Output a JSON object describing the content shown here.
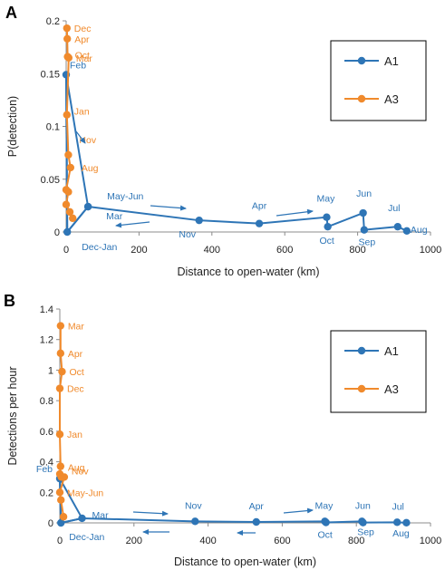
{
  "chart_data": [
    {
      "panel": "A",
      "type": "scatter",
      "xlabel": "Distance to open-water (km)",
      "ylabel": "P(detection)",
      "xlim": [
        0,
        1000
      ],
      "ylim": [
        0,
        0.2
      ],
      "xticks": [
        "0",
        "200",
        "400",
        "600",
        "800",
        "1000"
      ],
      "yticks": [
        "0",
        "0.05",
        "0.1",
        "0.15",
        "0.2"
      ],
      "grid": false,
      "legend": "top-right",
      "series": [
        {
          "name": "A1",
          "color": "#2e75b6",
          "points": [
            {
              "x": 0,
              "y": 0.149,
              "label": "Feb"
            },
            {
              "x": 3,
              "y": 0.0,
              "label": "Dec-Jan"
            },
            {
              "x": 60,
              "y": 0.024,
              "label": "May-Jun"
            },
            {
              "x": 60,
              "y": 0.024,
              "label": "Mar"
            },
            {
              "x": 365,
              "y": 0.011,
              "label": "Nov"
            },
            {
              "x": 530,
              "y": 0.008,
              "label": "Apr"
            },
            {
              "x": 715,
              "y": 0.014,
              "label": "May"
            },
            {
              "x": 718,
              "y": 0.005,
              "label": "Oct"
            },
            {
              "x": 815,
              "y": 0.018,
              "label": "Jun"
            },
            {
              "x": 818,
              "y": 0.002,
              "label": "Sep"
            },
            {
              "x": 910,
              "y": 0.005,
              "label": "Jul"
            },
            {
              "x": 935,
              "y": 0.001,
              "label": "Aug"
            }
          ]
        },
        {
          "name": "A3",
          "color": "#f08a2c",
          "points": [
            {
              "x": 2,
              "y": 0.193,
              "label": "Dec"
            },
            {
              "x": 3,
              "y": 0.183,
              "label": "Apr"
            },
            {
              "x": 4,
              "y": 0.166,
              "label": "Oct"
            },
            {
              "x": 7,
              "y": 0.165,
              "label": "Mar"
            },
            {
              "x": 2,
              "y": 0.111,
              "label": "Jan"
            },
            {
              "x": 6,
              "y": 0.073,
              "label": "Nov"
            },
            {
              "x": 12,
              "y": 0.061,
              "label": "Aug"
            },
            {
              "x": 0,
              "y": 0.04,
              "label": ""
            },
            {
              "x": 6,
              "y": 0.038,
              "label": ""
            },
            {
              "x": 0,
              "y": 0.026,
              "label": ""
            },
            {
              "x": 10,
              "y": 0.019,
              "label": ""
            },
            {
              "x": 18,
              "y": 0.013,
              "label": ""
            }
          ]
        }
      ],
      "annotations": [
        {
          "type": "arrow",
          "note": "down, near Feb-Nov"
        },
        {
          "type": "arrow",
          "note": "right, Mar to Nov"
        },
        {
          "type": "arrow",
          "note": "left, Nov to Mar"
        },
        {
          "type": "arrow",
          "note": "right, Apr to May"
        }
      ]
    },
    {
      "panel": "B",
      "type": "scatter",
      "xlabel": "Distance to open-water (km)",
      "ylabel": "Detections per hour",
      "xlim": [
        0,
        1000
      ],
      "ylim": [
        0,
        1.4
      ],
      "xticks": [
        "0",
        "200",
        "400",
        "600",
        "800",
        "1000"
      ],
      "yticks": [
        "0",
        "0.2",
        "0.4",
        "0.6",
        "0.8",
        "1",
        "1.2",
        "1.4"
      ],
      "grid": false,
      "legend": "top-right",
      "series": [
        {
          "name": "A1",
          "color": "#2e75b6",
          "points": [
            {
              "x": 0,
              "y": 0.29,
              "label": "Feb"
            },
            {
              "x": 3,
              "y": 0.0,
              "label": "Dec-Jan"
            },
            {
              "x": 60,
              "y": 0.03,
              "label": "Mar"
            },
            {
              "x": 365,
              "y": 0.01,
              "label": "Nov"
            },
            {
              "x": 530,
              "y": 0.006,
              "label": "Apr"
            },
            {
              "x": 715,
              "y": 0.01,
              "label": "May"
            },
            {
              "x": 718,
              "y": 0.003,
              "label": "Oct"
            },
            {
              "x": 815,
              "y": 0.01,
              "label": "Jun"
            },
            {
              "x": 818,
              "y": 0.002,
              "label": "Sep"
            },
            {
              "x": 910,
              "y": 0.004,
              "label": "Jul"
            },
            {
              "x": 935,
              "y": 0.001,
              "label": "Aug"
            }
          ]
        },
        {
          "name": "A3",
          "color": "#f08a2c",
          "points": [
            {
              "x": 2,
              "y": 1.29,
              "label": "Mar"
            },
            {
              "x": 2,
              "y": 1.11,
              "label": "Apr"
            },
            {
              "x": 6,
              "y": 0.99,
              "label": "Oct"
            },
            {
              "x": 0,
              "y": 0.88,
              "label": "Dec"
            },
            {
              "x": 0,
              "y": 0.58,
              "label": "Jan"
            },
            {
              "x": 2,
              "y": 0.37,
              "label": "Aug"
            },
            {
              "x": 0,
              "y": 0.32,
              "label": ""
            },
            {
              "x": 4,
              "y": 0.3,
              "label": ""
            },
            {
              "x": 12,
              "y": 0.3,
              "label": "Nov"
            },
            {
              "x": 0,
              "y": 0.2,
              "label": "May-Jun"
            },
            {
              "x": 3,
              "y": 0.15,
              "label": ""
            },
            {
              "x": 10,
              "y": 0.04,
              "label": ""
            }
          ]
        }
      ],
      "annotations": [
        {
          "type": "arrow",
          "note": "right, Mar to Nov"
        },
        {
          "type": "arrow",
          "note": "left, Nov to Mar"
        },
        {
          "type": "arrow",
          "note": "left, Apr to Nov"
        },
        {
          "type": "arrow",
          "note": "right, Apr to May"
        }
      ]
    }
  ]
}
